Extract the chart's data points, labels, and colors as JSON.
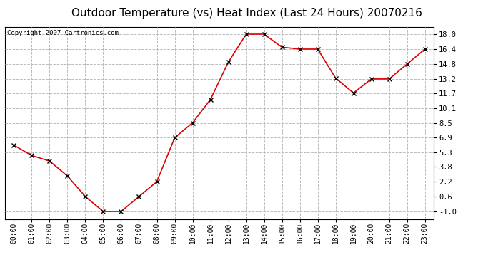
{
  "title": "Outdoor Temperature (vs) Heat Index (Last 24 Hours) 20070216",
  "copyright": "Copyright 2007 Cartronics.com",
  "x_labels": [
    "00:00",
    "01:00",
    "02:00",
    "03:00",
    "04:00",
    "05:00",
    "06:00",
    "07:00",
    "08:00",
    "09:00",
    "10:00",
    "11:00",
    "12:00",
    "13:00",
    "14:00",
    "15:00",
    "16:00",
    "17:00",
    "18:00",
    "19:00",
    "20:00",
    "21:00",
    "22:00",
    "23:00"
  ],
  "y_values": [
    6.1,
    5.0,
    4.4,
    2.8,
    0.6,
    -1.0,
    -1.0,
    0.6,
    2.2,
    6.9,
    8.5,
    11.0,
    15.0,
    18.0,
    18.0,
    16.6,
    16.4,
    16.4,
    13.3,
    11.7,
    13.2,
    13.2,
    14.8,
    16.4
  ],
  "line_color": "#dd0000",
  "marker": "x",
  "marker_color": "#000000",
  "bg_color": "#ffffff",
  "plot_bg_color": "#ffffff",
  "grid_color": "#bbbbbb",
  "grid_style": "--",
  "y_ticks": [
    -1.0,
    0.6,
    2.2,
    3.8,
    5.3,
    6.9,
    8.5,
    10.1,
    11.7,
    13.2,
    14.8,
    16.4,
    18.0
  ],
  "ylim_min": -1.8,
  "ylim_max": 18.8,
  "title_fontsize": 11,
  "copyright_fontsize": 6.5,
  "tick_fontsize": 7,
  "y_tick_fontsize": 7.5
}
